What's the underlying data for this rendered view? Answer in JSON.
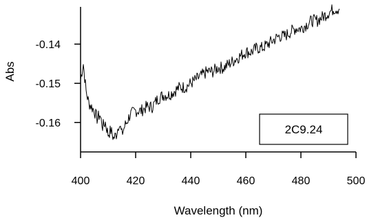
{
  "chart_data": {
    "type": "line",
    "xlabel": "Wavelength (nm)",
    "ylabel": "Abs",
    "xlim": [
      400,
      500
    ],
    "ylim": [
      -0.1675,
      -0.1305
    ],
    "xticks": [
      400,
      420,
      440,
      460,
      480,
      500
    ],
    "xtick_labels": [
      "400",
      "420",
      "440",
      "460",
      "480",
      "500"
    ],
    "yticks": [
      -0.16,
      -0.15,
      -0.14
    ],
    "ytick_labels": [
      "-0.16",
      "-0.15",
      "-0.14"
    ],
    "grid": false,
    "legend_position": "bottom-right",
    "series": [
      {
        "name": "2C9.24",
        "color": "#000000",
        "x": [
          400,
          401,
          402,
          403,
          404,
          405,
          406,
          407,
          408,
          409,
          410,
          411,
          412,
          413,
          414,
          415,
          416,
          418,
          420,
          422,
          424,
          426,
          428,
          430,
          432,
          434,
          436,
          438,
          440,
          442,
          444,
          446,
          448,
          450,
          452,
          454,
          456,
          458,
          460,
          462,
          464,
          466,
          468,
          470,
          472,
          474,
          476,
          478,
          480,
          482,
          484,
          486,
          488,
          490,
          492,
          494
        ],
        "values": [
          -0.149,
          -0.145,
          -0.152,
          -0.155,
          -0.156,
          -0.157,
          -0.159,
          -0.158,
          -0.161,
          -0.16,
          -0.163,
          -0.162,
          -0.164,
          -0.163,
          -0.16,
          -0.163,
          -0.161,
          -0.158,
          -0.157,
          -0.157,
          -0.156,
          -0.156,
          -0.154,
          -0.153,
          -0.153,
          -0.152,
          -0.151,
          -0.151,
          -0.15,
          -0.149,
          -0.148,
          -0.147,
          -0.147,
          -0.146,
          -0.146,
          -0.145,
          -0.144,
          -0.143,
          -0.142,
          -0.142,
          -0.141,
          -0.141,
          -0.14,
          -0.139,
          -0.138,
          -0.138,
          -0.137,
          -0.136,
          -0.136,
          -0.135,
          -0.134,
          -0.134,
          -0.133,
          -0.132,
          -0.131,
          -0.131
        ]
      }
    ]
  }
}
